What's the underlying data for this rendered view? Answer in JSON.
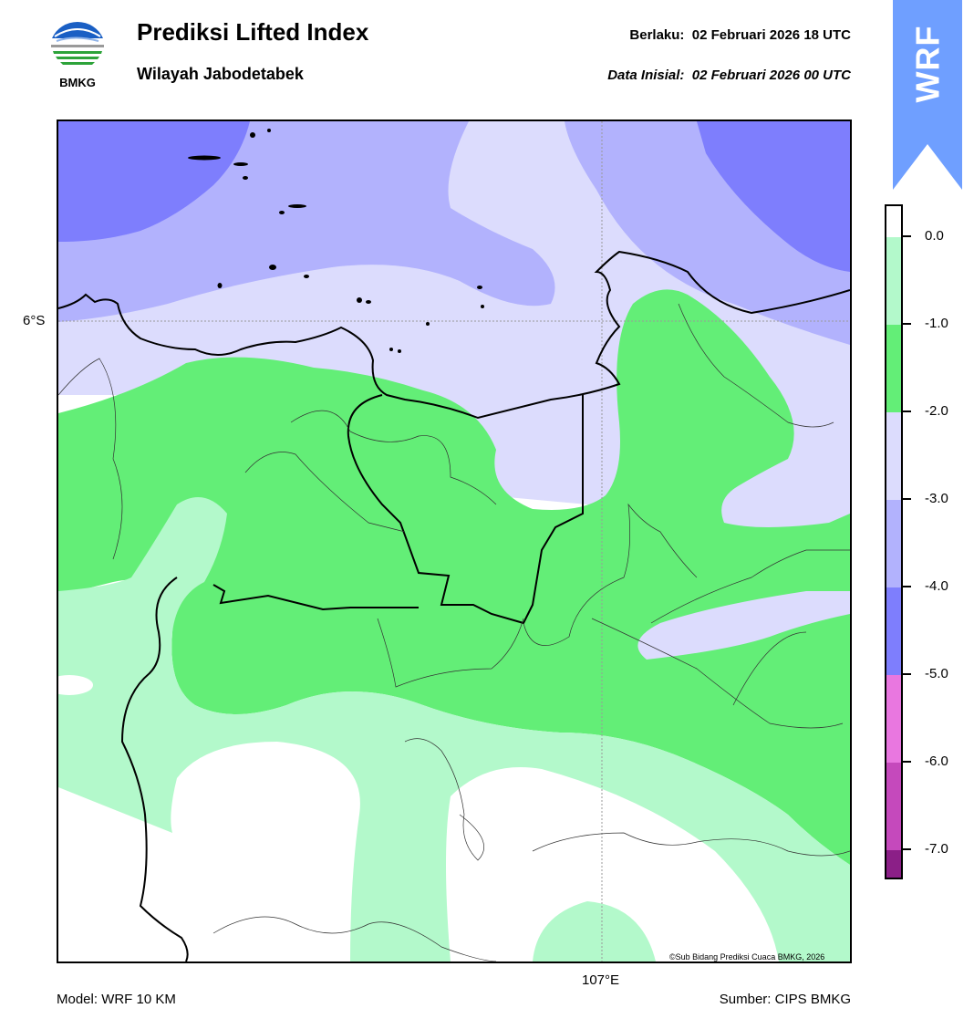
{
  "header": {
    "logo_text": "BMKG",
    "title": "Prediksi Lifted Index",
    "subtitle": "Wilayah Jabodetabek",
    "valid_label": "Berlaku:  02 Februari 2026 18 UTC",
    "init_label": "Data Inisial:  02 Februari 2026 00 UTC"
  },
  "map": {
    "lat_label": "6°S",
    "lon_label": "107°E",
    "copyright": "©Sub Bidang Prediksi Cuaca BMKG, 2026"
  },
  "badge": {
    "text": "WRF",
    "color": "#6f9fff"
  },
  "colorbar": {
    "labels": [
      "0.0",
      "-1.0",
      "-2.0",
      "-3.0",
      "-4.0",
      "-5.0",
      "-6.0",
      "-7.0"
    ],
    "segments": [
      {
        "range": "> 0",
        "color": "#ffffff"
      },
      {
        "range": "0 to -1",
        "color": "#b3f9cb"
      },
      {
        "range": "-1 to -2",
        "color": "#63ee77"
      },
      {
        "range": "-2 to -3",
        "color": "#dcdcfd"
      },
      {
        "range": "-3 to -4",
        "color": "#b2b2fd"
      },
      {
        "range": "-4 to -5",
        "color": "#7e7efd"
      },
      {
        "range": "-5 to -6",
        "color": "#e977e0"
      },
      {
        "range": "-6 to -7",
        "color": "#c549bc"
      },
      {
        "range": "< -7",
        "color": "#8b1f87"
      }
    ]
  },
  "footer": {
    "model": "Model: WRF 10 KM",
    "source": "Sumber: CIPS BMKG"
  }
}
